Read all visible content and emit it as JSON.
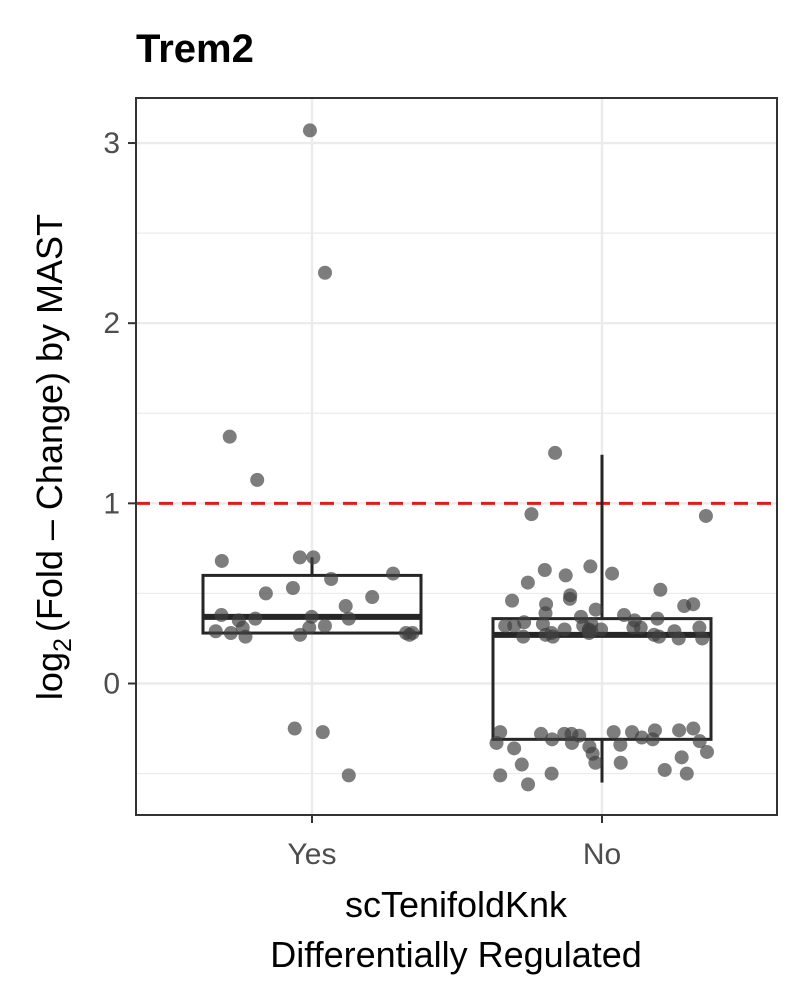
{
  "chart_data": {
    "type": "boxplot",
    "title": "Trem2",
    "xlabel_lines": [
      "scTenifoldKnk",
      "Differentially Regulated"
    ],
    "ylabel": {
      "prefix": "log",
      "subscript": "2",
      "body": "(Fold – Change) by MAST"
    },
    "categories": [
      "Yes",
      "No"
    ],
    "y_ticks": [
      0,
      1,
      2,
      3
    ],
    "y_tick_labels": [
      "0",
      "1",
      "2",
      "3"
    ],
    "ylim": [
      -0.73,
      3.25
    ],
    "grid": true,
    "reference_line": {
      "y": 1,
      "style": "dashed",
      "color": "#e31a1c"
    },
    "colors": {
      "points": "#404040",
      "box": "#262626",
      "grid": "#ebebeb",
      "panel_border": "#333333"
    },
    "boxes": [
      {
        "category": "Yes",
        "lower_whisker": 0.28,
        "q1": 0.28,
        "median": 0.37,
        "q3": 0.6,
        "upper_whisker": 0.7
      },
      {
        "category": "No",
        "lower_whisker": -0.55,
        "q1": -0.31,
        "median": 0.27,
        "q3": 0.36,
        "upper_whisker": 1.27
      }
    ],
    "points": [
      {
        "category": "Yes",
        "values": [
          3.07,
          2.28,
          1.37,
          1.13,
          0.7,
          0.7,
          0.68,
          0.61,
          0.58,
          0.53,
          0.5,
          0.48,
          0.43,
          0.38,
          0.37,
          0.36,
          0.36,
          0.35,
          0.32,
          0.31,
          0.31,
          0.29,
          0.28,
          0.28,
          0.28,
          0.27,
          0.27,
          0.26,
          -0.25,
          -0.27,
          -0.51
        ]
      },
      {
        "category": "No",
        "values": [
          1.28,
          0.94,
          0.93,
          0.65,
          0.63,
          0.61,
          0.6,
          0.56,
          0.52,
          0.49,
          0.47,
          0.46,
          0.44,
          0.44,
          0.43,
          0.41,
          0.39,
          0.38,
          0.37,
          0.36,
          0.35,
          0.34,
          0.33,
          0.33,
          0.32,
          0.32,
          0.32,
          0.31,
          0.31,
          0.31,
          0.3,
          0.3,
          0.3,
          0.29,
          0.29,
          0.29,
          0.28,
          0.28,
          0.27,
          0.27,
          0.26,
          0.26,
          0.26,
          0.25,
          0.25,
          -0.25,
          -0.26,
          -0.26,
          -0.27,
          -0.27,
          -0.27,
          -0.28,
          -0.28,
          -0.28,
          -0.29,
          -0.3,
          -0.31,
          -0.31,
          -0.32,
          -0.33,
          -0.33,
          -0.34,
          -0.35,
          -0.36,
          -0.38,
          -0.39,
          -0.41,
          -0.44,
          -0.44,
          -0.45,
          -0.48,
          -0.5,
          -0.5,
          -0.51,
          -0.56
        ]
      }
    ]
  }
}
